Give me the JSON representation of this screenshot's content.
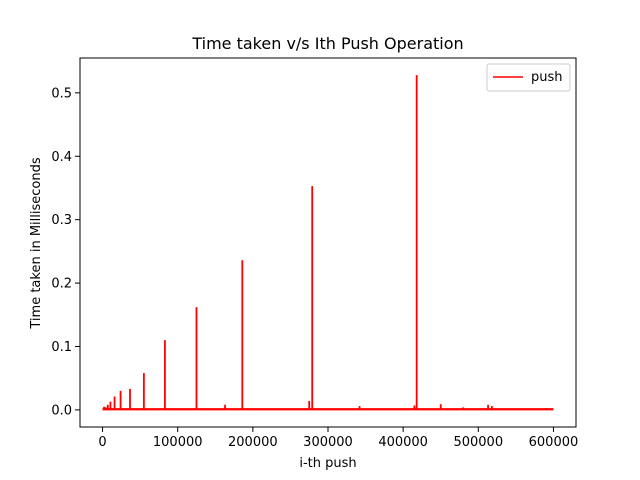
{
  "chart_data": {
    "type": "line",
    "title": "Time taken v/s Ith Push Operation",
    "xlabel": "i-th push",
    "ylabel": "Time taken in Milliseconds",
    "xlim": [
      -30000,
      630000
    ],
    "ylim": [
      -0.027,
      0.555
    ],
    "x_ticks": [
      0,
      100000,
      200000,
      300000,
      400000,
      500000,
      600000
    ],
    "x_tick_labels": [
      "0",
      "100000",
      "200000",
      "300000",
      "400000",
      "500000",
      "600000"
    ],
    "y_ticks": [
      0.0,
      0.1,
      0.2,
      0.3,
      0.4,
      0.5
    ],
    "y_tick_labels": [
      "0.0",
      "0.1",
      "0.2",
      "0.3",
      "0.4",
      "0.5"
    ],
    "grid": false,
    "legend": {
      "position": "top-right",
      "entries": [
        "push"
      ]
    },
    "series": [
      {
        "name": "push",
        "color": "#ff0000",
        "baseline_range": [
          0,
          600000
        ],
        "baseline_value": 0.001,
        "spikes": [
          {
            "x": 2000,
            "y": 0.005
          },
          {
            "x": 4500,
            "y": 0.004
          },
          {
            "x": 7000,
            "y": 0.008
          },
          {
            "x": 10500,
            "y": 0.013
          },
          {
            "x": 16000,
            "y": 0.021
          },
          {
            "x": 24000,
            "y": 0.03
          },
          {
            "x": 36500,
            "y": 0.033
          },
          {
            "x": 55000,
            "y": 0.058
          },
          {
            "x": 83000,
            "y": 0.11
          },
          {
            "x": 125000,
            "y": 0.162
          },
          {
            "x": 163000,
            "y": 0.008
          },
          {
            "x": 186000,
            "y": 0.236
          },
          {
            "x": 275000,
            "y": 0.014
          },
          {
            "x": 279000,
            "y": 0.353
          },
          {
            "x": 342000,
            "y": 0.006
          },
          {
            "x": 415000,
            "y": 0.007
          },
          {
            "x": 418000,
            "y": 0.528
          },
          {
            "x": 450000,
            "y": 0.009
          },
          {
            "x": 480000,
            "y": 0.004
          },
          {
            "x": 513000,
            "y": 0.008
          },
          {
            "x": 518000,
            "y": 0.006
          },
          {
            "x": 590000,
            "y": 0.003
          }
        ]
      }
    ]
  }
}
